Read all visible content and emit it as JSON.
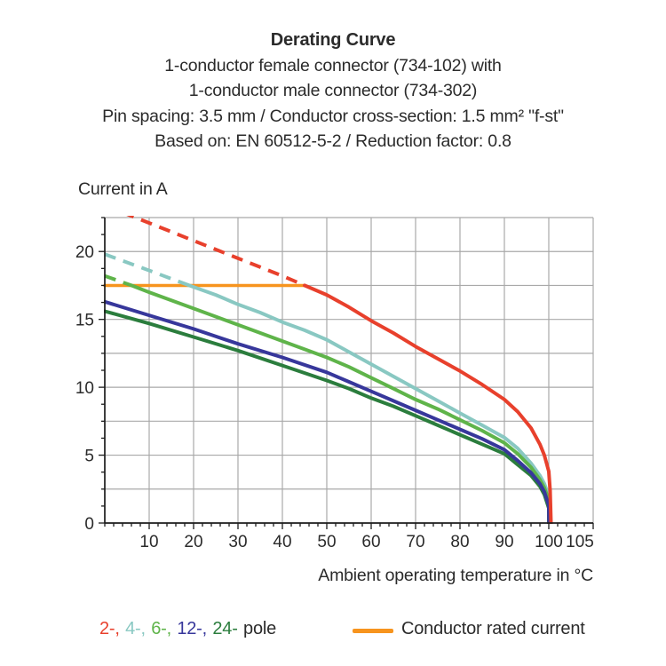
{
  "title": {
    "line1": "Derating Curve",
    "line2": "1-conductor female connector (734-102) with",
    "line3": "1-conductor male connector (734-302)",
    "line4": "Pin spacing: 3.5 mm / Conductor cross-section: 1.5 mm² \"f-st\"",
    "line5": "Based on: EN 60512-5-2 / Reduction factor: 0.8"
  },
  "axes": {
    "y_title": "Current in A",
    "x_title": "Ambient operating temperature in °C",
    "x_tick_labels": [
      "10",
      "20",
      "30",
      "40",
      "50",
      "60",
      "70",
      "80",
      "90",
      "100",
      "105"
    ],
    "y_tick_labels": [
      "0",
      "5",
      "10",
      "15",
      "20"
    ]
  },
  "legend": {
    "pole_items": [
      {
        "label": "2-,",
        "color": "#e8402c"
      },
      {
        "label": "4-,",
        "color": "#89c8c2"
      },
      {
        "label": "6-,",
        "color": "#5fb44a"
      },
      {
        "label": "12-,",
        "color": "#37379b"
      },
      {
        "label": "24-",
        "color": "#2b7d3d"
      },
      {
        "label": "pole",
        "color": "#2b2b2b"
      }
    ],
    "rated_color": "#f7941e",
    "rated_label": "Conductor rated current"
  },
  "chart_data": {
    "type": "line",
    "title": "Derating Curve",
    "xlabel": "Ambient operating temperature in °C",
    "ylabel": "Current in A",
    "xlim": [
      0,
      110
    ],
    "ylim": [
      0,
      22.5
    ],
    "grid": true,
    "x_major_step": 10,
    "y_major_step": 2.5,
    "rated_line": {
      "name": "Conductor rated current",
      "value": 17.5,
      "from": 0,
      "to": 45,
      "color": "#f7941e"
    },
    "series": [
      {
        "name": "4-pole",
        "color": "#89c8c2",
        "dash_until": 19,
        "points": [
          [
            0,
            19.8
          ],
          [
            10,
            18.6
          ],
          [
            19,
            17.5
          ],
          [
            25,
            16.8
          ],
          [
            30,
            16.1
          ],
          [
            35,
            15.5
          ],
          [
            40,
            14.8
          ],
          [
            45,
            14.2
          ],
          [
            50,
            13.5
          ],
          [
            55,
            12.6
          ],
          [
            60,
            11.7
          ],
          [
            65,
            10.8
          ],
          [
            70,
            9.9
          ],
          [
            75,
            9.0
          ],
          [
            80,
            8.1
          ],
          [
            85,
            7.2
          ],
          [
            90,
            6.3
          ],
          [
            93,
            5.5
          ],
          [
            96,
            4.4
          ],
          [
            98,
            3.5
          ],
          [
            99,
            2.9
          ],
          [
            100,
            2.0
          ],
          [
            100.2,
            0
          ]
        ]
      },
      {
        "name": "6-pole",
        "color": "#5fb44a",
        "dash_until": 6,
        "points": [
          [
            0,
            18.2
          ],
          [
            6,
            17.5
          ],
          [
            10,
            17.0
          ],
          [
            20,
            15.8
          ],
          [
            30,
            14.6
          ],
          [
            40,
            13.4
          ],
          [
            50,
            12.2
          ],
          [
            55,
            11.5
          ],
          [
            60,
            10.7
          ],
          [
            65,
            9.9
          ],
          [
            70,
            9.1
          ],
          [
            75,
            8.4
          ],
          [
            80,
            7.6
          ],
          [
            85,
            6.8
          ],
          [
            90,
            5.9
          ],
          [
            93,
            5.1
          ],
          [
            96,
            4.1
          ],
          [
            98,
            3.2
          ],
          [
            99,
            2.6
          ],
          [
            100,
            1.7
          ],
          [
            100.1,
            0
          ]
        ]
      },
      {
        "name": "24-pole",
        "color": "#2b7d3d",
        "dash_until": null,
        "points": [
          [
            0,
            15.6
          ],
          [
            10,
            14.7
          ],
          [
            20,
            13.7
          ],
          [
            30,
            12.7
          ],
          [
            40,
            11.6
          ],
          [
            50,
            10.5
          ],
          [
            55,
            9.9
          ],
          [
            60,
            9.2
          ],
          [
            65,
            8.6
          ],
          [
            70,
            7.9
          ],
          [
            75,
            7.2
          ],
          [
            80,
            6.5
          ],
          [
            85,
            5.8
          ],
          [
            90,
            5.1
          ],
          [
            93,
            4.3
          ],
          [
            96,
            3.5
          ],
          [
            98,
            2.7
          ],
          [
            99,
            2.1
          ],
          [
            100,
            1.1
          ],
          [
            100,
            0
          ]
        ]
      },
      {
        "name": "12-pole",
        "color": "#37379b",
        "dash_until": null,
        "points": [
          [
            0,
            16.3
          ],
          [
            10,
            15.3
          ],
          [
            20,
            14.3
          ],
          [
            30,
            13.2
          ],
          [
            40,
            12.2
          ],
          [
            50,
            11.1
          ],
          [
            55,
            10.4
          ],
          [
            60,
            9.7
          ],
          [
            65,
            9.0
          ],
          [
            70,
            8.3
          ],
          [
            75,
            7.6
          ],
          [
            80,
            6.9
          ],
          [
            85,
            6.2
          ],
          [
            90,
            5.4
          ],
          [
            93,
            4.6
          ],
          [
            96,
            3.7
          ],
          [
            98,
            2.9
          ],
          [
            99,
            2.3
          ],
          [
            100,
            1.3
          ],
          [
            100.05,
            0
          ]
        ]
      },
      {
        "name": "2-pole",
        "color": "#e8402c",
        "dash_until": 45,
        "points": [
          [
            0,
            23.4
          ],
          [
            10,
            22.1
          ],
          [
            20,
            20.8
          ],
          [
            30,
            19.5
          ],
          [
            40,
            18.2
          ],
          [
            45,
            17.5
          ],
          [
            50,
            16.8
          ],
          [
            55,
            15.9
          ],
          [
            60,
            14.9
          ],
          [
            65,
            14.0
          ],
          [
            70,
            13.0
          ],
          [
            75,
            12.1
          ],
          [
            80,
            11.2
          ],
          [
            85,
            10.2
          ],
          [
            90,
            9.1
          ],
          [
            93,
            8.2
          ],
          [
            96,
            7.0
          ],
          [
            98,
            5.8
          ],
          [
            99,
            5.0
          ],
          [
            100,
            3.8
          ],
          [
            100.3,
            2.4
          ],
          [
            100.5,
            0
          ]
        ]
      }
    ]
  }
}
